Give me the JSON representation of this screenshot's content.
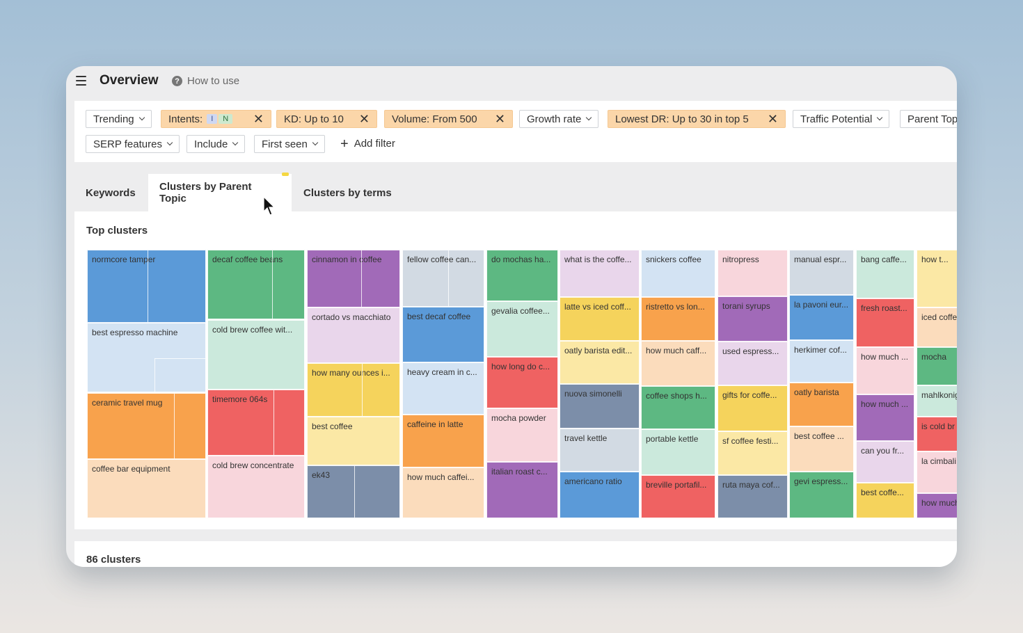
{
  "header": {
    "title": "Overview",
    "how_to_use": "How to use"
  },
  "filters": {
    "trending": "Trending",
    "intents": "Intents:",
    "intent_i": "I",
    "intent_n": "N",
    "kd": "KD: Up to 10",
    "volume": "Volume: From 500",
    "growth_rate": "Growth rate",
    "lowest_dr": "Lowest DR: Up to 30 in top 5",
    "traffic_potential": "Traffic Potential",
    "parent_topic": "Parent Top",
    "serp_features": "SERP features",
    "include": "Include",
    "first_seen": "First seen",
    "add_filter": "Add filter"
  },
  "tabs": [
    {
      "label": "Keywords"
    },
    {
      "label": "Clusters by Parent Topic"
    },
    {
      "label": "Clusters by terms"
    }
  ],
  "panel": {
    "title": "Top clusters"
  },
  "footer": {
    "clusters_count": "86 clusters"
  },
  "colors": {
    "blue": "#5b9ad8",
    "green": "#5db882",
    "purple": "#a16ab8",
    "yellow": "#f5d35c",
    "orange": "#f8a24c",
    "red": "#ef6262",
    "slate": "#7c8ea9",
    "lightblue": "#d3e3f3",
    "mint": "#cbe9dc",
    "lavender": "#e9d6eb",
    "pink": "#f8d6dc",
    "peach": "#fbdcbc",
    "lightyellow": "#fbe8a5",
    "lightgray": "#d2dae3"
  },
  "tiles": [
    {
      "label": "normcore tamper",
      "color": "blue"
    },
    {
      "label": "best espresso machine",
      "color": "lightblue"
    },
    {
      "label": "ceramic travel mug",
      "color": "orange"
    },
    {
      "label": "coffee bar equipment",
      "color": "peach"
    },
    {
      "label": "decaf coffee beans",
      "color": "green"
    },
    {
      "label": "cold brew coffee wit...",
      "color": "mint"
    },
    {
      "label": "timemore 064s",
      "color": "red"
    },
    {
      "label": "cold brew concentrate",
      "color": "pink"
    },
    {
      "label": "cinnamon in coffee",
      "color": "purple"
    },
    {
      "label": "cortado vs macchiato",
      "color": "lavender"
    },
    {
      "label": "how many ounces i...",
      "color": "yellow"
    },
    {
      "label": "best coffee",
      "color": "lightyellow"
    },
    {
      "label": "ek43",
      "color": "slate"
    },
    {
      "label": "fellow coffee can...",
      "color": "lightgray"
    },
    {
      "label": "best decaf coffee",
      "color": "blue"
    },
    {
      "label": "heavy cream in c...",
      "color": "lightblue"
    },
    {
      "label": "caffeine in latte",
      "color": "orange"
    },
    {
      "label": "how much caffei...",
      "color": "peach"
    },
    {
      "label": "do mochas ha...",
      "color": "green"
    },
    {
      "label": "gevalia coffee...",
      "color": "mint"
    },
    {
      "label": "how long do c...",
      "color": "red"
    },
    {
      "label": "mocha powder",
      "color": "pink"
    },
    {
      "label": "italian roast c...",
      "color": "purple"
    },
    {
      "label": "what is the coffe...",
      "color": "lavender"
    },
    {
      "label": "latte vs iced coff...",
      "color": "yellow"
    },
    {
      "label": "oatly barista edit...",
      "color": "lightyellow"
    },
    {
      "label": "nuova simonelli",
      "color": "slate"
    },
    {
      "label": "travel kettle",
      "color": "lightgray"
    },
    {
      "label": "americano ratio",
      "color": "blue"
    },
    {
      "label": "snickers coffee",
      "color": "lightblue"
    },
    {
      "label": "ristretto vs lon...",
      "color": "orange"
    },
    {
      "label": "how much caff...",
      "color": "peach"
    },
    {
      "label": "coffee shops h...",
      "color": "green"
    },
    {
      "label": "portable kettle",
      "color": "mint"
    },
    {
      "label": "breville portafil...",
      "color": "red"
    },
    {
      "label": "nitropress",
      "color": "pink"
    },
    {
      "label": "torani syrups",
      "color": "purple"
    },
    {
      "label": "used espress...",
      "color": "lavender"
    },
    {
      "label": "gifts for coffe...",
      "color": "yellow"
    },
    {
      "label": "sf coffee festi...",
      "color": "lightyellow"
    },
    {
      "label": "ruta maya cof...",
      "color": "slate"
    },
    {
      "label": "manual espr...",
      "color": "lightgray"
    },
    {
      "label": "la pavoni eur...",
      "color": "blue"
    },
    {
      "label": "herkimer cof...",
      "color": "lightblue"
    },
    {
      "label": "oatly barista",
      "color": "orange"
    },
    {
      "label": "best coffee ...",
      "color": "peach"
    },
    {
      "label": "gevi espress...",
      "color": "green"
    },
    {
      "label": "bang caffe...",
      "color": "mint"
    },
    {
      "label": "fresh roast...",
      "color": "red"
    },
    {
      "label": "how much ...",
      "color": "pink"
    },
    {
      "label": "how much ...",
      "color": "purple"
    },
    {
      "label": "can you fr...",
      "color": "lavender"
    },
    {
      "label": "best coffe...",
      "color": "yellow"
    },
    {
      "label": "how t...",
      "color": "lightyellow"
    },
    {
      "label": "iced coffe",
      "color": "peach"
    },
    {
      "label": "mocha",
      "color": "green"
    },
    {
      "label": "mahlkonig",
      "color": "mint"
    },
    {
      "label": "is cold br",
      "color": "red"
    },
    {
      "label": "la cimbali",
      "color": "pink"
    },
    {
      "label": "how much",
      "color": "purple"
    }
  ]
}
